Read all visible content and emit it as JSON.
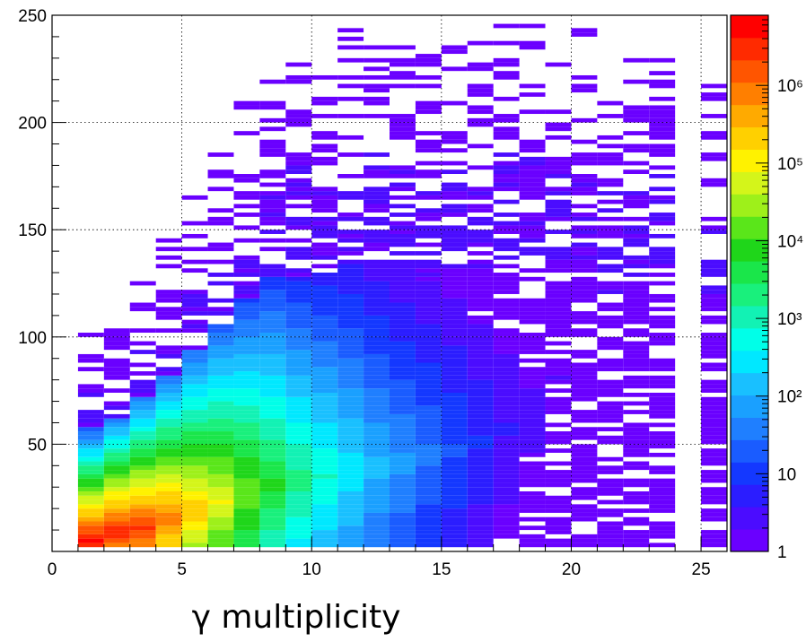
{
  "chart_data": {
    "type": "heatmap",
    "title": "",
    "xlabel": "γ multiplicity",
    "ylabel": "",
    "xlim": [
      0,
      26
    ],
    "ylim": [
      2,
      250
    ],
    "x_ticks": [
      "0",
      "5",
      "10",
      "15",
      "20",
      "25"
    ],
    "y_ticks": [
      "50",
      "100",
      "150",
      "200",
      "250"
    ],
    "grid": true,
    "colorbar": {
      "scale": "log",
      "range": [
        1,
        8000000
      ],
      "tick_labels": [
        "1",
        "10",
        "10²",
        "10³",
        "10⁴",
        "10⁵",
        "10⁶"
      ],
      "palette": [
        "#6a00ff",
        "#4b0cff",
        "#2b1dff",
        "#1438ff",
        "#1a5cff",
        "#1f7fff",
        "#1aa0ff",
        "#19c0ff",
        "#00e8ff",
        "#00ffe8",
        "#12f2b4",
        "#19f07c",
        "#1ae64a",
        "#1fd61a",
        "#5ae61a",
        "#9ef01a",
        "#d4f51a",
        "#fff200",
        "#ffd000",
        "#ffaa00",
        "#ff7f00",
        "#ff5500",
        "#ff2a00",
        "#ff0000"
      ]
    },
    "x_bin_width": 1,
    "y_bin_width": 2,
    "profile_note": "",
    "density_profile": [
      {
        "x": 1,
        "ymax": 104,
        "core_max": 50,
        "peak_y": 4,
        "log_peak": 6.7
      },
      {
        "x": 2,
        "ymax": 112,
        "core_max": 46,
        "peak_y": 8,
        "log_peak": 6.6
      },
      {
        "x": 3,
        "ymax": 130,
        "core_max": 44,
        "peak_y": 10,
        "log_peak": 6.4
      },
      {
        "x": 4,
        "ymax": 146,
        "core_max": 42,
        "peak_y": 14,
        "log_peak": 6.0
      },
      {
        "x": 5,
        "ymax": 168,
        "core_max": 40,
        "peak_y": 18,
        "log_peak": 5.4
      },
      {
        "x": 6,
        "ymax": 190,
        "core_max": 36,
        "peak_y": 22,
        "log_peak": 4.9
      },
      {
        "x": 7,
        "ymax": 212,
        "core_max": 32,
        "peak_y": 26,
        "log_peak": 4.3
      },
      {
        "x": 8,
        "ymax": 230,
        "core_max": 30,
        "peak_y": 30,
        "log_peak": 3.8
      },
      {
        "x": 9,
        "ymax": 232,
        "core_max": 28,
        "peak_y": 32,
        "log_peak": 3.3
      },
      {
        "x": 10,
        "ymax": 236,
        "core_max": 26,
        "peak_y": 34,
        "log_peak": 2.9
      },
      {
        "x": 11,
        "ymax": 246,
        "core_max": 24,
        "peak_y": 36,
        "log_peak": 2.5
      },
      {
        "x": 12,
        "ymax": 246,
        "core_max": 22,
        "peak_y": 38,
        "log_peak": 2.1
      },
      {
        "x": 13,
        "ymax": 240,
        "core_max": 20,
        "peak_y": 40,
        "log_peak": 1.8
      },
      {
        "x": 14,
        "ymax": 232,
        "core_max": 18,
        "peak_y": 44,
        "log_peak": 1.5
      },
      {
        "x": 15,
        "ymax": 238,
        "core_max": 16,
        "peak_y": 46,
        "log_peak": 1.2
      },
      {
        "x": 16,
        "ymax": 240,
        "core_max": 14,
        "peak_y": 50,
        "log_peak": 0.9
      },
      {
        "x": 17,
        "ymax": 246,
        "core_max": 12,
        "peak_y": 56,
        "log_peak": 0.6
      },
      {
        "x": 18,
        "ymax": 248,
        "core_max": 10,
        "peak_y": 60,
        "log_peak": 0.4
      },
      {
        "x": 19,
        "ymax": 244,
        "core_max": 8,
        "peak_y": 80,
        "log_peak": 0.3
      },
      {
        "x": 20,
        "ymax": 244,
        "core_max": 6,
        "peak_y": 100,
        "log_peak": 0.2
      },
      {
        "x": 21,
        "ymax": 212,
        "core_max": 4,
        "peak_y": 120,
        "log_peak": 0.1
      },
      {
        "x": 22,
        "ymax": 232,
        "core_max": 2,
        "peak_y": 130,
        "log_peak": 0.0
      },
      {
        "x": 23,
        "ymax": 242,
        "core_max": 2,
        "peak_y": 140,
        "log_peak": 0.0
      },
      {
        "x": 25,
        "ymax": 218,
        "core_max": 2,
        "peak_y": 150,
        "log_peak": 0.0
      }
    ]
  }
}
